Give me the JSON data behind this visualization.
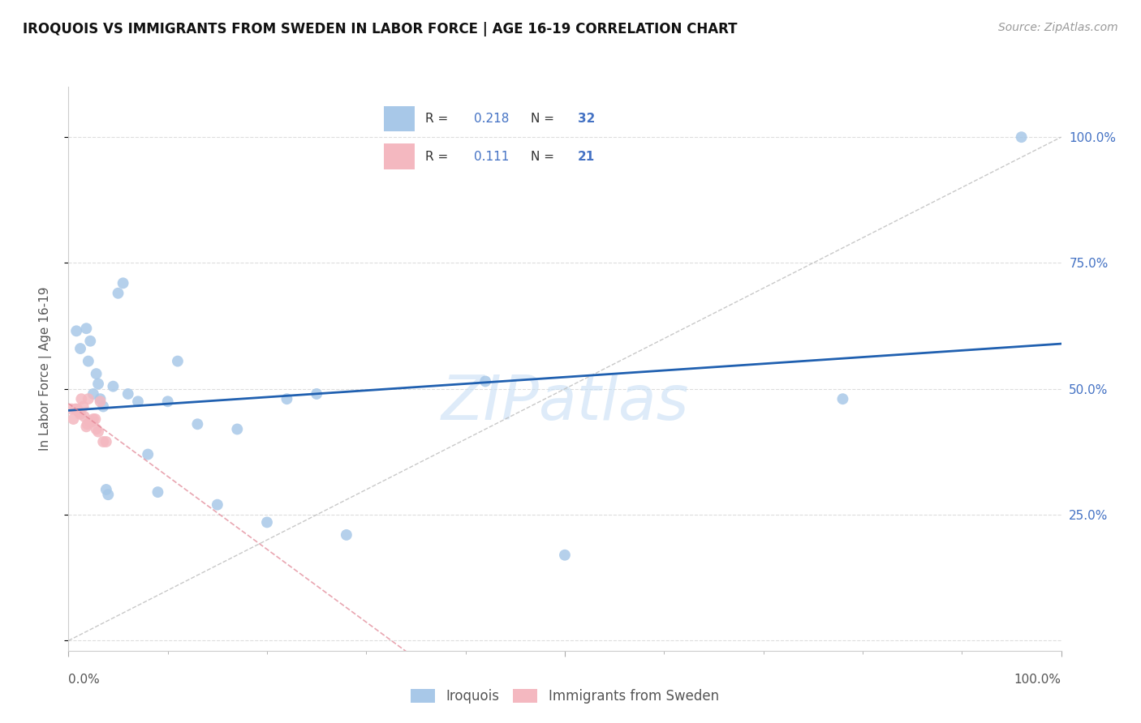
{
  "title": "IROQUOIS VS IMMIGRANTS FROM SWEDEN IN LABOR FORCE | AGE 16-19 CORRELATION CHART",
  "source": "Source: ZipAtlas.com",
  "ylabel_label": "In Labor Force | Age 16-19",
  "legend_label1": "Iroquois",
  "legend_label2": "Immigrants from Sweden",
  "R1": 0.218,
  "N1": 32,
  "R2": 0.111,
  "N2": 21,
  "blue_color": "#a8c8e8",
  "pink_color": "#f4b8c0",
  "blue_line_color": "#2060b0",
  "pink_line_color": "#e08090",
  "iroquois_x": [
    0.008,
    0.012,
    0.018,
    0.02,
    0.022,
    0.025,
    0.028,
    0.03,
    0.032,
    0.035,
    0.038,
    0.04,
    0.045,
    0.05,
    0.055,
    0.06,
    0.07,
    0.08,
    0.09,
    0.1,
    0.11,
    0.13,
    0.15,
    0.17,
    0.2,
    0.22,
    0.25,
    0.28,
    0.42,
    0.5,
    0.78,
    0.96
  ],
  "iroquois_y": [
    0.615,
    0.58,
    0.62,
    0.555,
    0.595,
    0.49,
    0.53,
    0.51,
    0.48,
    0.465,
    0.3,
    0.29,
    0.505,
    0.69,
    0.71,
    0.49,
    0.475,
    0.37,
    0.295,
    0.475,
    0.555,
    0.43,
    0.27,
    0.42,
    0.235,
    0.48,
    0.49,
    0.21,
    0.515,
    0.17,
    0.48,
    1.0
  ],
  "sweden_x": [
    0.003,
    0.005,
    0.007,
    0.009,
    0.01,
    0.012,
    0.013,
    0.015,
    0.016,
    0.018,
    0.019,
    0.02,
    0.022,
    0.024,
    0.025,
    0.027,
    0.028,
    0.03,
    0.032,
    0.035,
    0.038
  ],
  "sweden_y": [
    0.46,
    0.44,
    0.46,
    0.46,
    0.455,
    0.45,
    0.48,
    0.465,
    0.445,
    0.425,
    0.43,
    0.48,
    0.435,
    0.435,
    0.44,
    0.44,
    0.42,
    0.415,
    0.475,
    0.395,
    0.395
  ],
  "xlim": [
    0.0,
    1.0
  ],
  "ylim": [
    -0.02,
    1.1
  ],
  "ytick_positions": [
    0.0,
    0.25,
    0.5,
    0.75,
    1.0
  ],
  "ytick_labels_right": [
    "",
    "25.0%",
    "50.0%",
    "75.0%",
    "100.0%"
  ],
  "xticks_major": [
    0.0,
    0.5,
    1.0
  ],
  "xticks_minor": [
    0.1,
    0.2,
    0.3,
    0.4,
    0.6,
    0.7,
    0.8,
    0.9
  ],
  "background_color": "#ffffff",
  "grid_color": "#dddddd",
  "watermark": "ZIPatlas",
  "figsize": [
    14.06,
    8.92
  ],
  "dpi": 100
}
